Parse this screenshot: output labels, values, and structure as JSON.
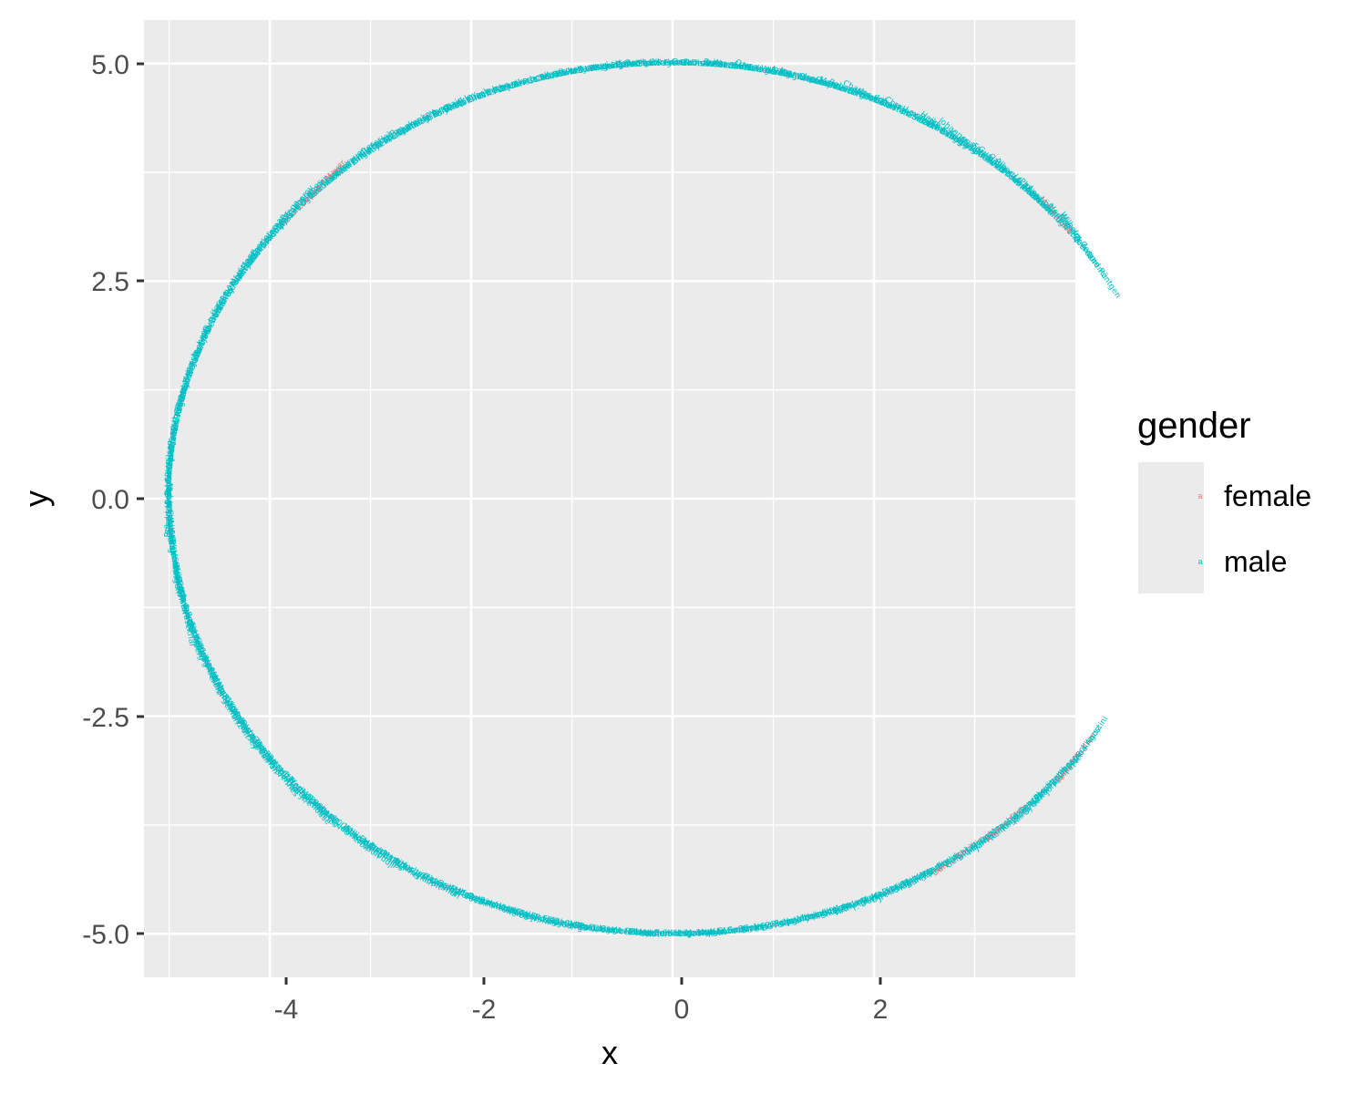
{
  "chart_data": {
    "type": "scatter",
    "title": "",
    "xlabel": "x",
    "ylabel": "y",
    "xlim": [
      -5.25,
      4.0
    ],
    "ylim": [
      -5.5,
      5.5
    ],
    "x_ticks": [
      -4,
      -2,
      0,
      2
    ],
    "x_tick_labels": [
      "-4",
      "-2",
      "0",
      "2"
    ],
    "y_ticks": [
      5.0,
      2.5,
      0.0,
      -2.5,
      -5.0
    ],
    "y_tick_labels": [
      "5.0",
      "2.5",
      "0.0",
      "-2.5",
      "-5.0"
    ],
    "grid": true,
    "point_style": "text labels at points on a circle of radius 5, rotated along the tangent",
    "legend": {
      "title": "gender",
      "position": "right",
      "entries": [
        {
          "key": "female",
          "label": "female",
          "color": "#F8766D"
        },
        {
          "key": "male",
          "label": "male",
          "color": "#00BFC4"
        }
      ]
    },
    "colors": {
      "female": "#F8766D",
      "male": "#00BFC4"
    },
    "circle": {
      "radius": 5,
      "start_angle_deg": 34,
      "end_angle_deg": 326
    },
    "points": [
      {
        "name": "Wilhelm Conrad Röntgen",
        "gender": "male"
      },
      {
        "name": "Hendrik A. Lorentz",
        "gender": "male"
      },
      {
        "name": "Pieter Zeeman",
        "gender": "male"
      },
      {
        "name": "Henri Becquerel",
        "gender": "male"
      },
      {
        "name": "Pierre Curie",
        "gender": "male"
      },
      {
        "name": "Marie Curie",
        "gender": "female"
      },
      {
        "name": "Lord Rayleigh",
        "gender": "male"
      },
      {
        "name": "Philipp Lenard",
        "gender": "male"
      },
      {
        "name": "J.J. Thomson",
        "gender": "male"
      },
      {
        "name": "Albert A. Michelson",
        "gender": "male"
      },
      {
        "name": "Gabriel Lippmann",
        "gender": "male"
      },
      {
        "name": "Guglielmo Marconi",
        "gender": "male"
      },
      {
        "name": "Ferdinand Braun",
        "gender": "male"
      },
      {
        "name": "Johannes Diderik van der Waals",
        "gender": "male"
      },
      {
        "name": "Wilhelm Wien",
        "gender": "male"
      },
      {
        "name": "Gustaf Dalén",
        "gender": "male"
      },
      {
        "name": "Heike Kamerlingh Onnes",
        "gender": "male"
      },
      {
        "name": "Max von Laue",
        "gender": "male"
      },
      {
        "name": "William Bragg",
        "gender": "male"
      },
      {
        "name": "Lawrence Bragg",
        "gender": "male"
      },
      {
        "name": "Charles Glover Barkla",
        "gender": "male"
      },
      {
        "name": "Max Planck",
        "gender": "male"
      },
      {
        "name": "Johannes Stark",
        "gender": "male"
      },
      {
        "name": "Charles Edouard Guillaume",
        "gender": "male"
      },
      {
        "name": "Albert Einstein",
        "gender": "male"
      },
      {
        "name": "Niels Bohr",
        "gender": "male"
      },
      {
        "name": "Robert A. Millikan",
        "gender": "male"
      },
      {
        "name": "Manne Siegbahn",
        "gender": "male"
      },
      {
        "name": "Gustav Hertz",
        "gender": "male"
      },
      {
        "name": "James Franck",
        "gender": "male"
      },
      {
        "name": "Jean Baptiste Perrin",
        "gender": "male"
      },
      {
        "name": "Arthur H. Compton",
        "gender": "male"
      },
      {
        "name": "C.T.R. Wilson",
        "gender": "male"
      },
      {
        "name": "Owen Willans Richardson",
        "gender": "male"
      },
      {
        "name": "Louis de Broglie",
        "gender": "male"
      },
      {
        "name": "Sir C.V. Raman",
        "gender": "male"
      },
      {
        "name": "Werner Heisenberg",
        "gender": "male"
      },
      {
        "name": "Erwin Schrödinger",
        "gender": "male"
      },
      {
        "name": "P.A.M. Dirac",
        "gender": "male"
      },
      {
        "name": "James Chadwick",
        "gender": "male"
      },
      {
        "name": "Carl D. Anderson",
        "gender": "male"
      },
      {
        "name": "Victor F. Hess",
        "gender": "male"
      },
      {
        "name": "Clinton Davisson",
        "gender": "male"
      },
      {
        "name": "George Paget Thomson",
        "gender": "male"
      },
      {
        "name": "Enrico Fermi",
        "gender": "male"
      },
      {
        "name": "Ernest Lawrence",
        "gender": "male"
      },
      {
        "name": "Otto Stern",
        "gender": "male"
      },
      {
        "name": "Isidor Isaac Rabi",
        "gender": "male"
      },
      {
        "name": "Wolfgang Pauli",
        "gender": "male"
      },
      {
        "name": "Percy W. Bridgman",
        "gender": "male"
      },
      {
        "name": "Edward V. Appleton",
        "gender": "male"
      },
      {
        "name": "Patrick M.S. Blackett",
        "gender": "male"
      },
      {
        "name": "Hideki Yukawa",
        "gender": "male"
      },
      {
        "name": "Cecil Powell",
        "gender": "male"
      },
      {
        "name": "Ernest T.S. Walton",
        "gender": "male"
      },
      {
        "name": "John Cockcroft",
        "gender": "male"
      },
      {
        "name": "E. M. Purcell",
        "gender": "male"
      },
      {
        "name": "Felix Bloch",
        "gender": "male"
      },
      {
        "name": "Frits Zernike",
        "gender": "male"
      },
      {
        "name": "Max Born",
        "gender": "male"
      },
      {
        "name": "Walther Bothe",
        "gender": "male"
      },
      {
        "name": "Willis E. Lamb",
        "gender": "male"
      },
      {
        "name": "Polykarp Kusch",
        "gender": "male"
      },
      {
        "name": "John Bardeen",
        "gender": "male"
      },
      {
        "name": "William B. Shockley",
        "gender": "male"
      },
      {
        "name": "Walter H. Brattain",
        "gender": "male"
      },
      {
        "name": "Chen Ning Yang",
        "gender": "male"
      },
      {
        "name": "Tsung-Dao Lee",
        "gender": "male"
      },
      {
        "name": "Pavel A. Cherenkov",
        "gender": "male"
      },
      {
        "name": "Il´ja M. Frank",
        "gender": "male"
      },
      {
        "name": "Igor Y. Tamm",
        "gender": "male"
      },
      {
        "name": "Emilio Segrè",
        "gender": "male"
      },
      {
        "name": "Owen Chamberlain",
        "gender": "male"
      },
      {
        "name": "Donald A. Glaser",
        "gender": "male"
      },
      {
        "name": "Robert Hofstadter",
        "gender": "male"
      },
      {
        "name": "Rudolf Mössbauer",
        "gender": "male"
      },
      {
        "name": "Lev Landau",
        "gender": "male"
      },
      {
        "name": "Eugene Wigner",
        "gender": "male"
      },
      {
        "name": "Maria Goeppert Mayer",
        "gender": "female"
      },
      {
        "name": "J. Hans D. Jensen",
        "gender": "male"
      },
      {
        "name": "Charles H. Townes",
        "gender": "male"
      },
      {
        "name": "Nicolay G. Basov",
        "gender": "male"
      },
      {
        "name": "Aleksandr M. Prokhorov",
        "gender": "male"
      },
      {
        "name": "Sin-Itiro Tomonaga",
        "gender": "male"
      },
      {
        "name": "Julian Schwinger",
        "gender": "male"
      },
      {
        "name": "Richard P. Feynman",
        "gender": "male"
      },
      {
        "name": "Alfred Kastler",
        "gender": "male"
      },
      {
        "name": "Hans Bethe",
        "gender": "male"
      },
      {
        "name": "Luis Alvarez",
        "gender": "male"
      },
      {
        "name": "Murray Gell-Mann",
        "gender": "male"
      },
      {
        "name": "Hannes Alfvén",
        "gender": "male"
      },
      {
        "name": "Louis Néel",
        "gender": "male"
      },
      {
        "name": "Dennis Gabor",
        "gender": "male"
      },
      {
        "name": "John Bardeen",
        "gender": "male"
      },
      {
        "name": "Leon N. Cooper",
        "gender": "male"
      },
      {
        "name": "Robert Schrieffer",
        "gender": "male"
      },
      {
        "name": "Leo Esaki",
        "gender": "male"
      },
      {
        "name": "Ivar Giaever",
        "gender": "male"
      },
      {
        "name": "Brian D. Josephson",
        "gender": "male"
      },
      {
        "name": "Martin Ryle",
        "gender": "male"
      },
      {
        "name": "Antony Hewish",
        "gender": "male"
      },
      {
        "name": "Aage N. Bohr",
        "gender": "male"
      },
      {
        "name": "Ben R. Mottelson",
        "gender": "male"
      },
      {
        "name": "James Rainwater",
        "gender": "male"
      },
      {
        "name": "Burton Richter",
        "gender": "male"
      },
      {
        "name": "Samuel C.C. Ting",
        "gender": "male"
      },
      {
        "name": "Philip W. Anderson",
        "gender": "male"
      },
      {
        "name": "Sir Nevill F. Mott",
        "gender": "male"
      },
      {
        "name": "John H. van Vleck",
        "gender": "male"
      },
      {
        "name": "Pyotr Kapitsa",
        "gender": "male"
      },
      {
        "name": "Arno Penzias",
        "gender": "male"
      },
      {
        "name": "Robert Woodrow Wilson",
        "gender": "male"
      },
      {
        "name": "Sheldon Glashow",
        "gender": "male"
      },
      {
        "name": "Abdus Salam",
        "gender": "male"
      },
      {
        "name": "Steven Weinberg",
        "gender": "male"
      },
      {
        "name": "James Cronin",
        "gender": "male"
      },
      {
        "name": "Val Fitch",
        "gender": "male"
      },
      {
        "name": "Nicolaas Bloembergen",
        "gender": "male"
      },
      {
        "name": "Arthur L. Schawlow",
        "gender": "male"
      },
      {
        "name": "Kai M. Siegbahn",
        "gender": "male"
      },
      {
        "name": "Kenneth G. Wilson",
        "gender": "male"
      },
      {
        "name": "Subramanyan Chandrasekhar",
        "gender": "male"
      },
      {
        "name": "William A. Fowler",
        "gender": "male"
      },
      {
        "name": "Carlo Rubbia",
        "gender": "male"
      },
      {
        "name": "Simon van der Meer",
        "gender": "male"
      },
      {
        "name": "Klaus von Klitzing",
        "gender": "male"
      },
      {
        "name": "Ernst Ruska",
        "gender": "male"
      },
      {
        "name": "Gerd Binnig",
        "gender": "male"
      },
      {
        "name": "Heinrich Rohrer",
        "gender": "male"
      },
      {
        "name": "J. Georg Bednorz",
        "gender": "male"
      },
      {
        "name": "K. Alex Müller",
        "gender": "male"
      },
      {
        "name": "Jack Steinberger",
        "gender": "male"
      },
      {
        "name": "Leon M. Lederman",
        "gender": "male"
      },
      {
        "name": "Melvin Schwartz",
        "gender": "male"
      },
      {
        "name": "Hans G. Dehmelt",
        "gender": "male"
      },
      {
        "name": "Norman F. Ramsey",
        "gender": "male"
      },
      {
        "name": "Wolfgang Paul",
        "gender": "male"
      },
      {
        "name": "Henry W. Kendall",
        "gender": "male"
      },
      {
        "name": "Jerome I. Friedman",
        "gender": "male"
      },
      {
        "name": "Richard E. Taylor",
        "gender": "male"
      },
      {
        "name": "Pierre-Gilles de Gennes",
        "gender": "male"
      },
      {
        "name": "Georges Charpak",
        "gender": "male"
      },
      {
        "name": "Joseph H. Taylor Jr.",
        "gender": "male"
      },
      {
        "name": "Russell A. Hulse",
        "gender": "male"
      },
      {
        "name": "Bertram N. Brockhouse",
        "gender": "male"
      },
      {
        "name": "Clifford G. Shull",
        "gender": "male"
      },
      {
        "name": "Frederick Reines",
        "gender": "male"
      },
      {
        "name": "Martin L. Perl",
        "gender": "male"
      },
      {
        "name": "David M. Lee",
        "gender": "male"
      },
      {
        "name": "Douglas D. Osheroff",
        "gender": "male"
      },
      {
        "name": "Robert C. Richardson",
        "gender": "male"
      },
      {
        "name": "Claude Cohen-Tannoudji",
        "gender": "male"
      },
      {
        "name": "Steven Chu",
        "gender": "male"
      },
      {
        "name": "William D. Phillips",
        "gender": "male"
      },
      {
        "name": "Daniel C. Tsui",
        "gender": "male"
      },
      {
        "name": "Horst L. Störmer",
        "gender": "male"
      },
      {
        "name": "Robert B. Laughlin",
        "gender": "male"
      },
      {
        "name": "Gerardus 't Hooft",
        "gender": "male"
      },
      {
        "name": "Martinus J.G. Veltman",
        "gender": "male"
      },
      {
        "name": "Herbert Kroemer",
        "gender": "male"
      },
      {
        "name": "Jack Kilby",
        "gender": "male"
      },
      {
        "name": "Zhores Alferov",
        "gender": "male"
      },
      {
        "name": "Carl Wieman",
        "gender": "male"
      },
      {
        "name": "Eric Cornell",
        "gender": "male"
      },
      {
        "name": "Wolfgang Ketterle",
        "gender": "male"
      },
      {
        "name": "Masatoshi Koshiba",
        "gender": "male"
      },
      {
        "name": "Raymond Davis Jr.",
        "gender": "male"
      },
      {
        "name": "Riccardo Giacconi",
        "gender": "male"
      },
      {
        "name": "Alexei Abrikosov",
        "gender": "male"
      },
      {
        "name": "Anthony J. Leggett",
        "gender": "male"
      },
      {
        "name": "Vitaly L. Ginzburg",
        "gender": "male"
      },
      {
        "name": "David J. Gross",
        "gender": "male"
      },
      {
        "name": "Frank Wilczek",
        "gender": "male"
      },
      {
        "name": "David Politzer",
        "gender": "male"
      },
      {
        "name": "John L. Hall",
        "gender": "male"
      },
      {
        "name": "Roy J. Glauber",
        "gender": "male"
      },
      {
        "name": "Theodor W. Hänsch",
        "gender": "male"
      },
      {
        "name": "George F. Smoot",
        "gender": "male"
      },
      {
        "name": "John C. Mather",
        "gender": "male"
      },
      {
        "name": "Albert Fert",
        "gender": "male"
      },
      {
        "name": "Peter Grünberg",
        "gender": "male"
      },
      {
        "name": "Makoto Kobayashi",
        "gender": "male"
      },
      {
        "name": "Toshihide Maskawa",
        "gender": "male"
      },
      {
        "name": "Yoichiro Nambu",
        "gender": "male"
      },
      {
        "name": "Charles K. Kao",
        "gender": "male"
      },
      {
        "name": "George E. Smith",
        "gender": "male"
      },
      {
        "name": "Willard S. Boyle",
        "gender": "male"
      },
      {
        "name": "Andre Geim",
        "gender": "male"
      },
      {
        "name": "Konstantin Novoselov",
        "gender": "male"
      },
      {
        "name": "Adam G. Riess",
        "gender": "male"
      },
      {
        "name": "Brian P. Schmidt",
        "gender": "male"
      },
      {
        "name": "Saul Perlmutter",
        "gender": "male"
      },
      {
        "name": "David J. Wineland",
        "gender": "male"
      },
      {
        "name": "Serge Haroche",
        "gender": "male"
      },
      {
        "name": "François Englert",
        "gender": "male"
      },
      {
        "name": "Peter Higgs",
        "gender": "male"
      },
      {
        "name": "Hiroshi Amano",
        "gender": "male"
      },
      {
        "name": "Shuji Nakamura",
        "gender": "male"
      },
      {
        "name": "Isamu Akasaki",
        "gender": "male"
      },
      {
        "name": "Arthur B. McDonald",
        "gender": "male"
      },
      {
        "name": "Takaaki Kajita",
        "gender": "male"
      },
      {
        "name": "F. Duncan M. Haldane",
        "gender": "male"
      },
      {
        "name": "David J. Thouless",
        "gender": "male"
      },
      {
        "name": "J. Michael Kosterlitz",
        "gender": "male"
      },
      {
        "name": "Kip S. Thorne",
        "gender": "male"
      },
      {
        "name": "Barry C. Barish",
        "gender": "male"
      },
      {
        "name": "Rainer Weiss",
        "gender": "male"
      },
      {
        "name": "Arthur Ashkin",
        "gender": "male"
      },
      {
        "name": "Donna Strickland",
        "gender": "female"
      },
      {
        "name": "Gérard Mourou",
        "gender": "male"
      },
      {
        "name": "Didier Queloz",
        "gender": "male"
      },
      {
        "name": "Michel Mayor",
        "gender": "male"
      },
      {
        "name": "James Peebles",
        "gender": "male"
      },
      {
        "name": "Andrea Ghez",
        "gender": "female"
      },
      {
        "name": "Reinhard Genzel",
        "gender": "male"
      },
      {
        "name": "Roger Penrose",
        "gender": "male"
      },
      {
        "name": "Giorgio Parisi",
        "gender": "male"
      },
      {
        "name": "Klaus Hasselmann",
        "gender": "male"
      },
      {
        "name": "Syukuro Manabe",
        "gender": "male"
      },
      {
        "name": "Anton Zeilinger",
        "gender": "male"
      },
      {
        "name": "John Clauser",
        "gender": "male"
      },
      {
        "name": "Alain Aspect",
        "gender": "male"
      },
      {
        "name": "Anne L’Huillier",
        "gender": "female"
      },
      {
        "name": "Ferenc Krausz",
        "gender": "male"
      },
      {
        "name": "Pierre Agostini",
        "gender": "male"
      }
    ]
  }
}
